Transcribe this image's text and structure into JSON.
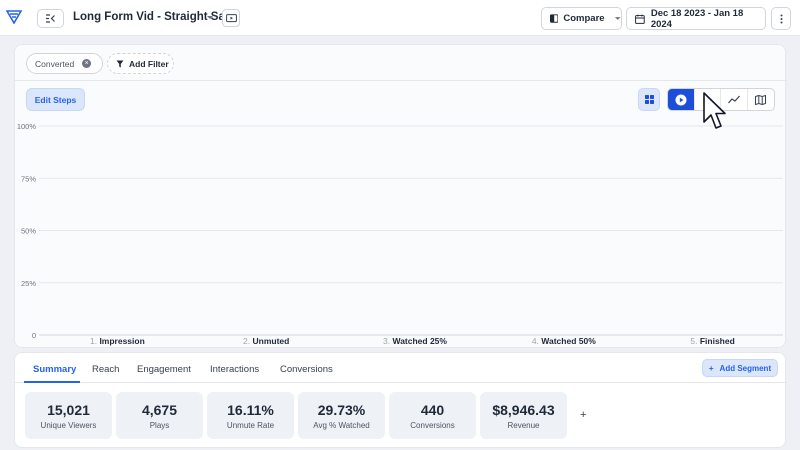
{
  "header": {
    "title": "Long Form Vid - Straight Sale",
    "compare_label": "Compare",
    "date_range": "Dec 18 2023 - Jan 18 2024"
  },
  "filters": {
    "active_chip": "Converted",
    "add_filter_label": "Add Filter"
  },
  "toolbar": {
    "edit_steps_label": "Edit Steps",
    "views": [
      "grid-icon",
      "play-icon",
      "bar-chart-icon",
      "line-chart-icon",
      "map-icon"
    ],
    "active_view": "play-icon"
  },
  "chart_data": {
    "type": "bar",
    "yticks": [
      "100%",
      "75%",
      "50%",
      "25%",
      "0"
    ],
    "ylim": [
      0,
      100
    ],
    "grid": true,
    "steps": [
      {
        "num": "1.",
        "name": "Impression"
      },
      {
        "num": "2.",
        "name": "Unmuted"
      },
      {
        "num": "3.",
        "name": "Watched 25%"
      },
      {
        "num": "4.",
        "name": "Watched 50%"
      },
      {
        "num": "5.",
        "name": "Finished"
      }
    ]
  },
  "tabs": [
    "Summary",
    "Reach",
    "Engagement",
    "Interactions",
    "Conversions"
  ],
  "active_tab": "Summary",
  "add_segment_label": "Add Segment",
  "metrics": [
    {
      "value": "15,021",
      "label": "Unique Viewers"
    },
    {
      "value": "4,675",
      "label": "Plays"
    },
    {
      "value": "16.11%",
      "label": "Unmute Rate"
    },
    {
      "value": "29.73%",
      "label": "Avg % Watched"
    },
    {
      "value": "440",
      "label": "Conversions"
    },
    {
      "value": "$8,946.43",
      "label": "Revenue"
    }
  ],
  "add_metric_label": "+",
  "colors": {
    "accent": "#2563eb",
    "accent_dark": "#1d4ed8",
    "accent_light": "#dbe6fb"
  }
}
